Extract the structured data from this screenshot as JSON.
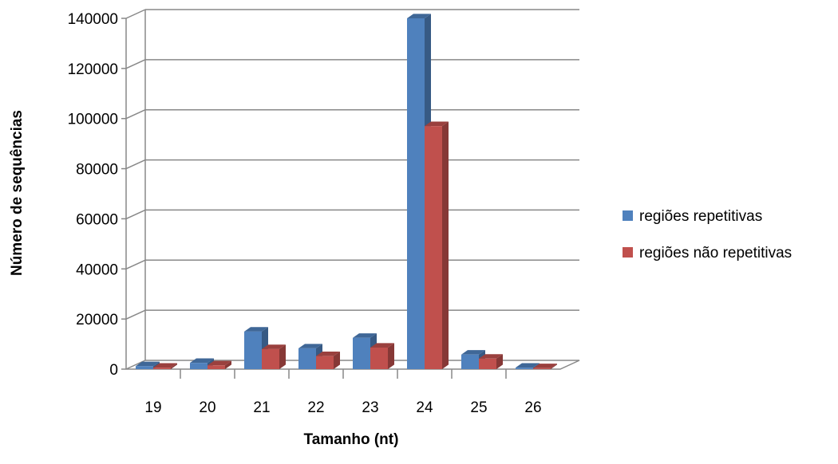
{
  "chart_data": {
    "type": "bar",
    "categories": [
      "19",
      "20",
      "21",
      "22",
      "23",
      "24",
      "25",
      "26"
    ],
    "series": [
      {
        "name": "regiões repetitivas",
        "color": "#4F81BD",
        "values": [
          1200,
          2500,
          15000,
          8300,
          12500,
          140000,
          5800,
          600
        ]
      },
      {
        "name": "regiões não repetitivas",
        "color": "#C0504D",
        "values": [
          600,
          1500,
          8000,
          5200,
          8600,
          97000,
          4200,
          400
        ]
      }
    ],
    "xlabel": "Tamanho (nt)",
    "ylabel": "Número de sequências",
    "ylim": [
      0,
      140000
    ],
    "yticks": [
      "0",
      "20000",
      "40000",
      "60000",
      "80000",
      "100000",
      "120000",
      "140000"
    ],
    "grid": true,
    "legend_position": "right",
    "style": "3d-clustered-column"
  }
}
